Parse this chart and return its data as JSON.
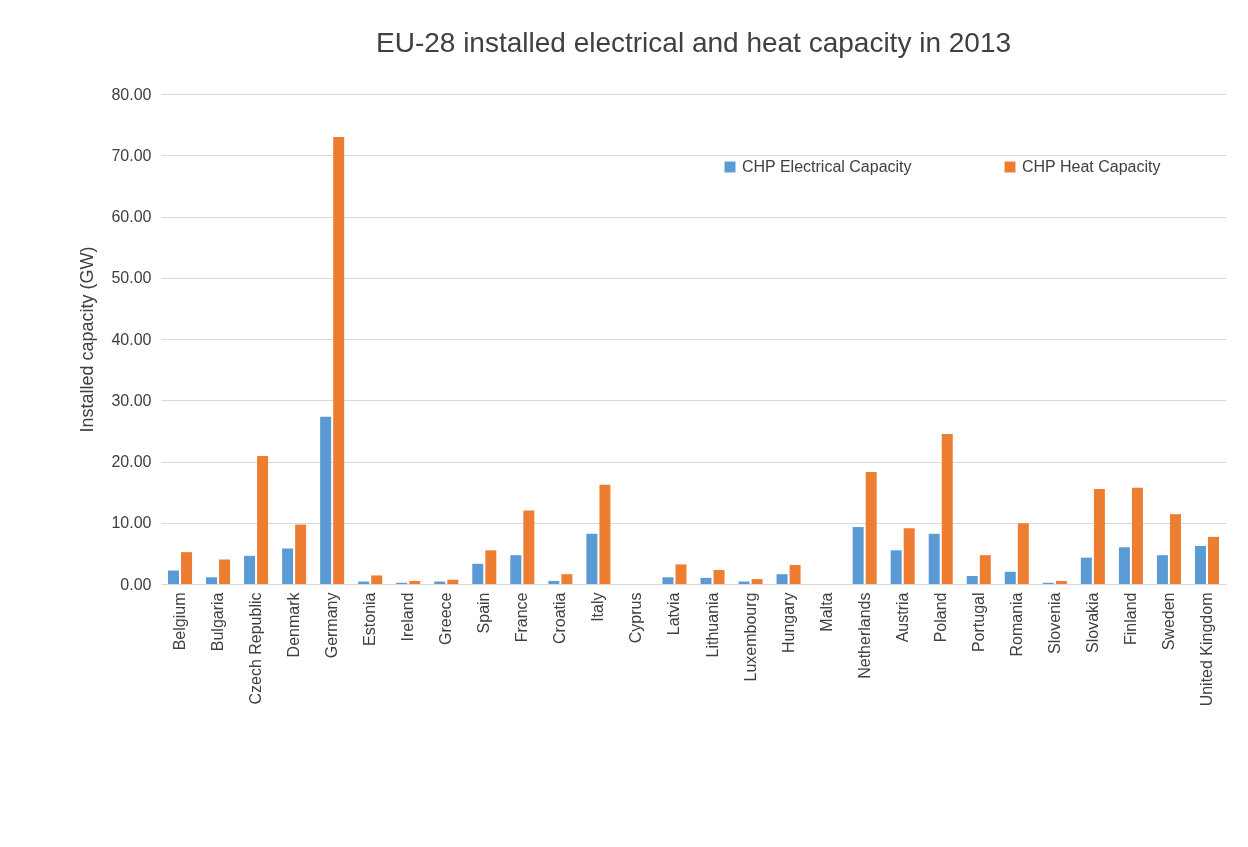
{
  "chart_data": {
    "type": "bar",
    "title": "EU-28 installed electrical and heat capacity in 2013",
    "ylabel": "Installed capacity (GW)",
    "categories": [
      "Belgium",
      "Bulgaria",
      "Czech Republic",
      "Denmark",
      "Germany",
      "Estonia",
      "Ireland",
      "Greece",
      "Spain",
      "France",
      "Croatia",
      "Italy",
      "Cyprus",
      "Latvia",
      "Lithuania",
      "Luxembourg",
      "Hungary",
      "Malta",
      "Netherlands",
      "Austria",
      "Poland",
      "Portugal",
      "Romania",
      "Slovenia",
      "Slovakia",
      "Finland",
      "Sweden",
      "United Kingdom"
    ],
    "series": [
      {
        "name": "CHP Electrical Capacity",
        "color": "#5b9bd5",
        "values": [
          2.2,
          1.1,
          4.6,
          5.8,
          27.3,
          0.4,
          0.2,
          0.4,
          3.3,
          4.7,
          0.5,
          8.2,
          0,
          1.1,
          1.0,
          0.4,
          1.6,
          0,
          9.3,
          5.5,
          8.2,
          1.3,
          2.0,
          0.2,
          4.3,
          6.0,
          4.7,
          6.2
        ]
      },
      {
        "name": "CHP Heat Capacity",
        "color": "#ed7d31",
        "values": [
          5.2,
          4.0,
          20.9,
          9.7,
          73.0,
          1.4,
          0.5,
          0.7,
          5.5,
          12.0,
          1.6,
          16.2,
          0,
          3.2,
          2.3,
          0.8,
          3.1,
          0,
          18.3,
          9.1,
          24.5,
          4.7,
          9.9,
          0.5,
          15.5,
          15.7,
          11.4,
          7.7
        ]
      }
    ],
    "ylim": [
      0,
      80
    ],
    "yticks": [
      {
        "value": 0,
        "label": "0.00"
      },
      {
        "value": 10,
        "label": "10.00"
      },
      {
        "value": 20,
        "label": "20.00"
      },
      {
        "value": 30,
        "label": "30.00"
      },
      {
        "value": 40,
        "label": "40.00"
      },
      {
        "value": 50,
        "label": "50.00"
      },
      {
        "value": 60,
        "label": "60.00"
      },
      {
        "value": 70,
        "label": "70.00"
      },
      {
        "value": 80,
        "label": "80.00"
      }
    ],
    "grid": "y",
    "legend": "top right"
  }
}
